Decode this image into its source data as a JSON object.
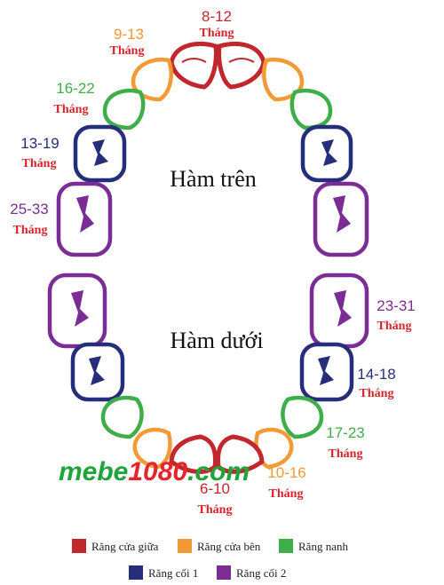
{
  "colors": {
    "central_incisor": "#c1272d",
    "lateral_incisor": "#f29a36",
    "canine": "#3fae49",
    "first_molar": "#262d7a",
    "second_molar": "#7a2d94",
    "month_text": "#d8232a",
    "watermark_green": "#1fa33a",
    "watermark_red": "#e5242b"
  },
  "jaws": {
    "upper": "Hàm trên",
    "lower": "Hàm dưới"
  },
  "labels": {
    "upper_central": {
      "range": "8-12",
      "unit": "Tháng"
    },
    "upper_lateral": {
      "range": "9-13",
      "unit": "Tháng"
    },
    "upper_canine": {
      "range": "16-22",
      "unit": "Tháng"
    },
    "upper_first_molar": {
      "range": "13-19",
      "unit": "Tháng"
    },
    "upper_second_molar": {
      "range": "25-33",
      "unit": "Tháng"
    },
    "lower_second_molar": {
      "range": "23-31",
      "unit": "Tháng"
    },
    "lower_first_molar": {
      "range": "14-18",
      "unit": "Tháng"
    },
    "lower_canine": {
      "range": "17-23",
      "unit": "Tháng"
    },
    "lower_lateral": {
      "range": "10-16",
      "unit": "Tháng"
    },
    "lower_central": {
      "range": "6-10",
      "unit": "Tháng"
    }
  },
  "watermark": {
    "part1": "mebe",
    "part2": "1080",
    "part3": ".com"
  },
  "legend": [
    {
      "label": "Răng cửa giữa",
      "color": "#c1272d"
    },
    {
      "label": "Răng cửa bên",
      "color": "#f29a36"
    },
    {
      "label": "Răng nanh",
      "color": "#3fae49"
    },
    {
      "label": "Răng cối 1",
      "color": "#262d7a"
    },
    {
      "label": "Răng cối 2",
      "color": "#7a2d94"
    }
  ]
}
